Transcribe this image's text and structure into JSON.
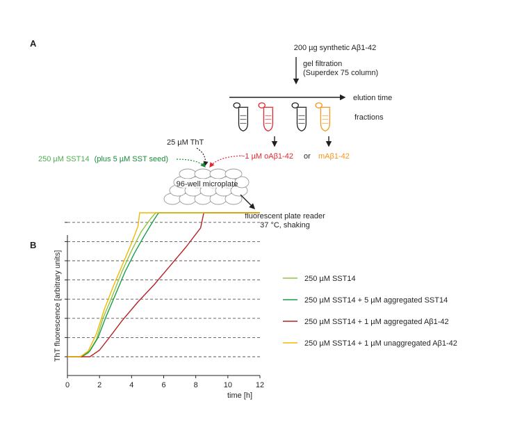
{
  "panel_a": {
    "label": "A",
    "source": "200 µg synthetic Aβ1-42",
    "step_line1": "gel filtration",
    "step_line2": "(Superdex 75 column)",
    "axis_label": "elution time",
    "fractions_label": "fractions",
    "oligomer": "~1 µM oAβ1-42",
    "or_word": "or",
    "monomer": "mAβ1-42",
    "tht": "25 µM ThT",
    "sst_main": "250 µM SST14",
    "sst_paren": "(plus 5 µM SST seed)",
    "plate": "96-well microplate",
    "reader_line1": "fluorescent plate reader",
    "reader_line2": "37 °C, shaking",
    "colors": {
      "red": "#e3262e",
      "orange": "#f7941d",
      "green_light": "#6dbe45",
      "green_dark": "#1b8a3a",
      "dark": "#231f20"
    }
  },
  "panel_b": {
    "label": "B",
    "chart_data": {
      "type": "line",
      "xlabel": "time [h]",
      "ylabel": "ThT fluorescence [arbitrary units]",
      "xlim": [
        0,
        12
      ],
      "x_ticks": [
        0,
        2,
        4,
        6,
        8,
        10,
        12
      ],
      "y_gridlines": 8,
      "grid": "horizontal-dashed",
      "legend_position": "right",
      "series": [
        {
          "name": "250 µM SST14",
          "color": "#8dc63f",
          "x": [
            0,
            0.9,
            1.3,
            1.8,
            2.2,
            2.8,
            3.4,
            4.0,
            4.6,
            5.2,
            5.5,
            5.6,
            12
          ],
          "y": [
            0,
            0,
            0.2,
            0.9,
            2.0,
            3.2,
            4.5,
            5.6,
            6.6,
            7.3,
            7.6,
            7.6,
            7.6
          ]
        },
        {
          "name": "250 µM SST14 + 5 µM aggregated SST14",
          "color": "#1b9a4a",
          "x": [
            0,
            0.9,
            1.4,
            1.9,
            2.4,
            3.0,
            3.6,
            4.2,
            4.8,
            5.3,
            5.6,
            5.7,
            12
          ],
          "y": [
            0,
            0,
            0.3,
            1.0,
            2.1,
            3.3,
            4.5,
            5.5,
            6.4,
            7.1,
            7.5,
            7.6,
            7.6
          ]
        },
        {
          "name": "250 µM SST14 + 1 µM aggregated Aβ1-42",
          "color": "#b72025",
          "x": [
            0,
            1.4,
            2.0,
            2.6,
            3.4,
            4.4,
            5.4,
            6.4,
            7.4,
            8.3,
            8.5,
            12
          ],
          "y": [
            0,
            0,
            0.35,
            1.0,
            1.9,
            2.9,
            3.8,
            4.8,
            5.8,
            6.8,
            7.6,
            7.6
          ]
        },
        {
          "name": "250 µM SST14 + 1 µM unaggregated Aβ1-42",
          "color": "#f2b705",
          "x": [
            0,
            0.8,
            1.3,
            1.8,
            2.3,
            2.9,
            3.5,
            4.0,
            4.4,
            4.5,
            12
          ],
          "y": [
            0,
            0,
            0.3,
            1.2,
            2.5,
            3.8,
            5.0,
            6.0,
            6.9,
            7.6,
            7.6
          ]
        }
      ]
    }
  }
}
